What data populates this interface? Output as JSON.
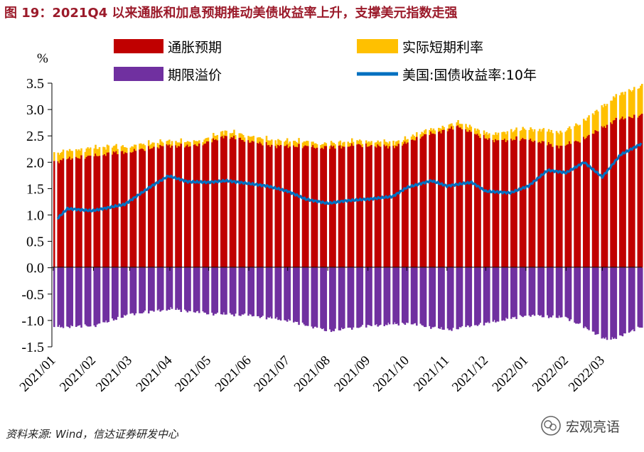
{
  "figure": {
    "title": "图  19：2021Q4 以来通胀和加息预期推动美债收益率上升，支撑美元指数走强",
    "source": "资料来源: Wind，信达证券研发中心",
    "watermark": "宏观亮语"
  },
  "colors": {
    "inflation": "#c00000",
    "real_rate": "#ffc000",
    "term_premium": "#7030a0",
    "yield_line": "#0070c0",
    "title": "#9b1a2a"
  },
  "chart_data": {
    "type": "bar",
    "stacked": true,
    "unit_label": "%",
    "ylim": [
      -1.5,
      3.5
    ],
    "yticks": [
      "3.5",
      "3.0",
      "2.5",
      "2.0",
      "1.5",
      "1.0",
      "0.5",
      "0.0",
      "-0.5",
      "-1.0",
      "-1.5"
    ],
    "ytick_values": [
      3.5,
      3.0,
      2.5,
      2.0,
      1.5,
      1.0,
      0.5,
      0.0,
      -0.5,
      -1.0,
      -1.5
    ],
    "x_start": "2021-01-01",
    "x_end": "2022-03-31",
    "xticks": [
      "2021/01",
      "2021/02",
      "2021/03",
      "2021/04",
      "2021/05",
      "2021/06",
      "2021/07",
      "2021/08",
      "2021/09",
      "2021/10",
      "2021/11",
      "2021/12",
      "2022/01",
      "2022/02",
      "2022/03"
    ],
    "xtick_dates": [
      "2021-01-01",
      "2021-02-01",
      "2021-03-01",
      "2021-04-01",
      "2021-05-01",
      "2021-06-01",
      "2021-07-01",
      "2021-08-01",
      "2021-09-01",
      "2021-10-01",
      "2021-11-01",
      "2021-12-01",
      "2022-01-01",
      "2022-02-01",
      "2022-03-01"
    ],
    "legend": {
      "placement": "top",
      "columns": 2
    },
    "grid": false,
    "series": [
      {
        "name": "通胀预期",
        "kind": "bar",
        "points": [
          [
            "2021-01-04",
            2.02
          ],
          [
            "2021-01-15",
            2.08
          ],
          [
            "2021-02-01",
            2.12
          ],
          [
            "2021-02-15",
            2.18
          ],
          [
            "2021-03-01",
            2.2
          ],
          [
            "2021-03-15",
            2.27
          ],
          [
            "2021-04-01",
            2.32
          ],
          [
            "2021-04-15",
            2.3
          ],
          [
            "2021-05-01",
            2.38
          ],
          [
            "2021-05-12",
            2.5
          ],
          [
            "2021-05-25",
            2.44
          ],
          [
            "2021-06-10",
            2.35
          ],
          [
            "2021-06-25",
            2.3
          ],
          [
            "2021-07-10",
            2.31
          ],
          [
            "2021-07-25",
            2.28
          ],
          [
            "2021-08-10",
            2.3
          ],
          [
            "2021-08-25",
            2.33
          ],
          [
            "2021-09-10",
            2.3
          ],
          [
            "2021-09-25",
            2.31
          ],
          [
            "2021-10-10",
            2.48
          ],
          [
            "2021-10-25",
            2.58
          ],
          [
            "2021-11-10",
            2.68
          ],
          [
            "2021-11-25",
            2.5
          ],
          [
            "2021-12-10",
            2.4
          ],
          [
            "2021-12-25",
            2.45
          ],
          [
            "2022-01-10",
            2.4
          ],
          [
            "2022-01-25",
            2.3
          ],
          [
            "2022-02-10",
            2.4
          ],
          [
            "2022-02-25",
            2.6
          ],
          [
            "2022-03-10",
            2.8
          ],
          [
            "2022-03-31",
            2.9
          ]
        ]
      },
      {
        "name": "实际短期利率",
        "kind": "bar",
        "points": [
          [
            "2021-01-04",
            0.15
          ],
          [
            "2021-02-01",
            0.15
          ],
          [
            "2021-03-01",
            0.1
          ],
          [
            "2021-04-01",
            0.08
          ],
          [
            "2021-05-01",
            0.08
          ],
          [
            "2021-06-01",
            0.1
          ],
          [
            "2021-07-01",
            0.1
          ],
          [
            "2021-08-01",
            0.07
          ],
          [
            "2021-09-01",
            0.08
          ],
          [
            "2021-10-01",
            0.08
          ],
          [
            "2021-11-01",
            0.07
          ],
          [
            "2021-12-01",
            0.1
          ],
          [
            "2022-01-01",
            0.2
          ],
          [
            "2022-02-01",
            0.28
          ],
          [
            "2022-03-01",
            0.4
          ],
          [
            "2022-03-31",
            0.55
          ]
        ]
      },
      {
        "name": "期限溢价",
        "kind": "bar",
        "points": [
          [
            "2021-01-04",
            -1.12
          ],
          [
            "2021-02-01",
            -1.1
          ],
          [
            "2021-03-01",
            -0.88
          ],
          [
            "2021-04-01",
            -0.78
          ],
          [
            "2021-05-01",
            -0.87
          ],
          [
            "2021-06-01",
            -0.9
          ],
          [
            "2021-07-01",
            -1.0
          ],
          [
            "2021-08-01",
            -1.2
          ],
          [
            "2021-09-01",
            -1.1
          ],
          [
            "2021-10-01",
            -1.05
          ],
          [
            "2021-11-01",
            -1.18
          ],
          [
            "2021-12-01",
            -1.05
          ],
          [
            "2022-01-01",
            -0.9
          ],
          [
            "2022-02-01",
            -0.95
          ],
          [
            "2022-02-20",
            -1.2
          ],
          [
            "2022-03-05",
            -1.38
          ],
          [
            "2022-03-31",
            -1.12
          ]
        ]
      },
      {
        "name": "美国:国债收益率:10年",
        "kind": "line",
        "points": [
          [
            "2021-01-04",
            0.93
          ],
          [
            "2021-01-12",
            1.12
          ],
          [
            "2021-01-31",
            1.08
          ],
          [
            "2021-02-25",
            1.2
          ],
          [
            "2021-03-18",
            1.55
          ],
          [
            "2021-03-31",
            1.74
          ],
          [
            "2021-04-15",
            1.63
          ],
          [
            "2021-05-01",
            1.62
          ],
          [
            "2021-05-15",
            1.65
          ],
          [
            "2021-06-15",
            1.55
          ],
          [
            "2021-07-01",
            1.45
          ],
          [
            "2021-07-15",
            1.3
          ],
          [
            "2021-08-01",
            1.22
          ],
          [
            "2021-08-15",
            1.27
          ],
          [
            "2021-09-01",
            1.3
          ],
          [
            "2021-09-20",
            1.35
          ],
          [
            "2021-10-01",
            1.52
          ],
          [
            "2021-10-20",
            1.65
          ],
          [
            "2021-11-01",
            1.55
          ],
          [
            "2021-11-20",
            1.62
          ],
          [
            "2021-12-01",
            1.45
          ],
          [
            "2021-12-20",
            1.42
          ],
          [
            "2022-01-03",
            1.55
          ],
          [
            "2022-01-18",
            1.85
          ],
          [
            "2022-02-01",
            1.8
          ],
          [
            "2022-02-15",
            2.0
          ],
          [
            "2022-03-01",
            1.72
          ],
          [
            "2022-03-15",
            2.14
          ],
          [
            "2022-03-31",
            2.35
          ]
        ]
      }
    ]
  }
}
